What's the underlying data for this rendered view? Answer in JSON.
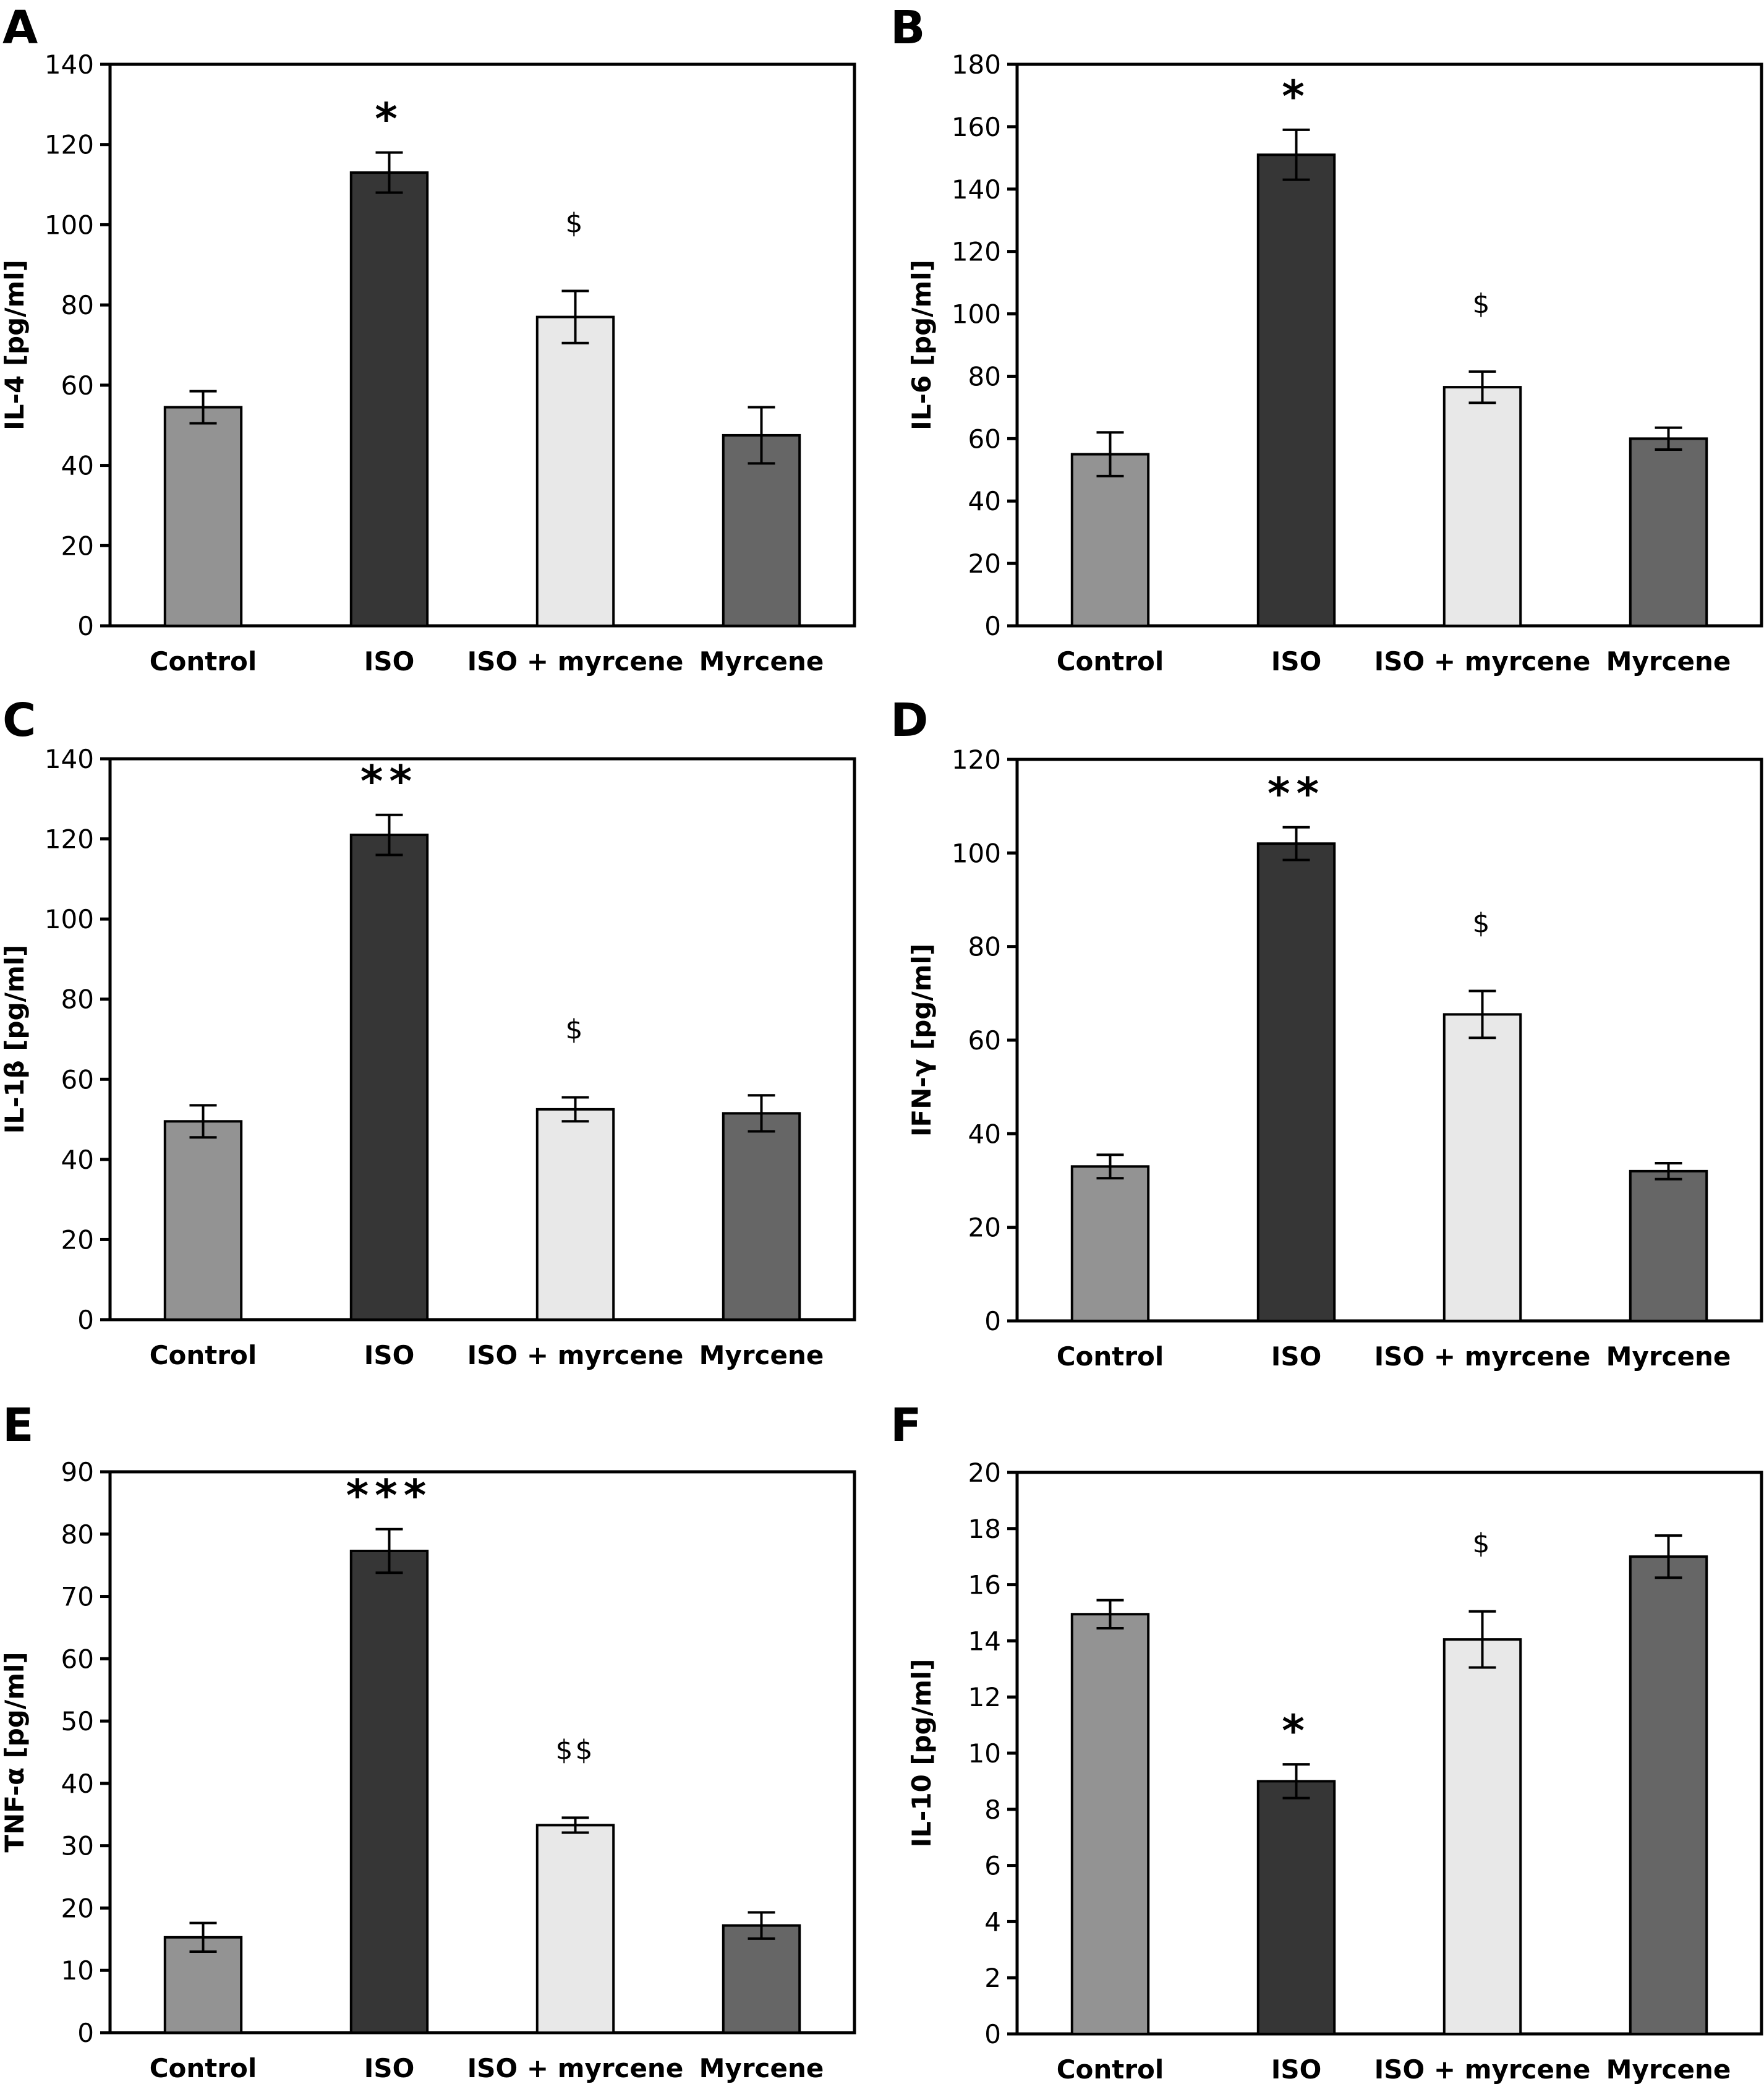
{
  "figure": {
    "categories": [
      "Control",
      "ISO",
      "ISO + myrcene",
      "Myrcene"
    ],
    "bar_colors": [
      "#939393",
      "#363636",
      "#e8e8e8",
      "#666666"
    ],
    "edge_color": "#000000"
  },
  "chart_data": [
    {
      "type": "bar",
      "panel": "A",
      "title": "",
      "ylabel": "IL-4 [pg/ml]",
      "xlabel": "",
      "categories": [
        "Control",
        "ISO",
        "ISO + myrcene",
        "Myrcene"
      ],
      "values": [
        54.5,
        113,
        77,
        47.5
      ],
      "errors": [
        4,
        5,
        6.5,
        7
      ],
      "annotations": [
        "",
        "*",
        "$",
        ""
      ],
      "ylim": [
        0,
        140
      ],
      "yticks": [
        0,
        20,
        40,
        60,
        80,
        100,
        120,
        140
      ],
      "grid": false
    },
    {
      "type": "bar",
      "panel": "B",
      "title": "",
      "ylabel": "IL-6 [pg/ml]",
      "xlabel": "",
      "categories": [
        "Control",
        "ISO",
        "ISO + myrcene",
        "Myrcene"
      ],
      "values": [
        55,
        151,
        76.5,
        60
      ],
      "errors": [
        7,
        8,
        5,
        3.5
      ],
      "annotations": [
        "",
        "*",
        "$",
        ""
      ],
      "ylim": [
        0,
        180
      ],
      "yticks": [
        0,
        20,
        40,
        60,
        80,
        100,
        120,
        140,
        160,
        180
      ],
      "grid": false
    },
    {
      "type": "bar",
      "panel": "C",
      "title": "",
      "ylabel": "IL-1β [pg/ml]",
      "xlabel": "",
      "categories": [
        "Control",
        "ISO",
        "ISO + myrcene",
        "Myrcene"
      ],
      "values": [
        49.5,
        121,
        52.5,
        51.5
      ],
      "errors": [
        4,
        5,
        3,
        4.5
      ],
      "annotations": [
        "",
        "**",
        "$",
        ""
      ],
      "ylim": [
        0,
        140
      ],
      "yticks": [
        0,
        20,
        40,
        60,
        80,
        100,
        120,
        140
      ],
      "grid": false
    },
    {
      "type": "bar",
      "panel": "D",
      "title": "",
      "ylabel": "IFN-γ [pg/ml]",
      "xlabel": "",
      "categories": [
        "Control",
        "ISO",
        "ISO + myrcene",
        "Myrcene"
      ],
      "values": [
        33,
        102,
        65.5,
        32
      ],
      "errors": [
        2.5,
        3.5,
        5,
        1.7
      ],
      "annotations": [
        "",
        "**",
        "$",
        ""
      ],
      "ylim": [
        0,
        120
      ],
      "yticks": [
        0,
        20,
        40,
        60,
        80,
        100,
        120
      ],
      "grid": false
    },
    {
      "type": "bar",
      "panel": "E",
      "title": "",
      "ylabel": "TNF-α [pg/ml]",
      "xlabel": "",
      "categories": [
        "Control",
        "ISO",
        "ISO + myrcene",
        "Myrcene"
      ],
      "values": [
        15.3,
        77.3,
        33.3,
        17.2
      ],
      "errors": [
        2.3,
        3.5,
        1.2,
        2.1
      ],
      "annotations": [
        "",
        "***",
        "$$",
        ""
      ],
      "ylim": [
        0,
        90
      ],
      "yticks": [
        0,
        10,
        20,
        30,
        40,
        50,
        60,
        70,
        80,
        90
      ],
      "grid": false
    },
    {
      "type": "bar",
      "panel": "F",
      "title": "",
      "ylabel": "IL-10 [pg/ml]",
      "xlabel": "",
      "categories": [
        "Control",
        "ISO",
        "ISO + myrcene",
        "Myrcene"
      ],
      "values": [
        14.95,
        9.0,
        14.05,
        17.0
      ],
      "errors": [
        0.5,
        0.6,
        1.0,
        0.75
      ],
      "annotations": [
        "",
        "*",
        "$",
        ""
      ],
      "ylim": [
        0,
        20
      ],
      "yticks": [
        0,
        2,
        4,
        6,
        8,
        10,
        12,
        14,
        16,
        18,
        20
      ],
      "grid": false
    }
  ]
}
